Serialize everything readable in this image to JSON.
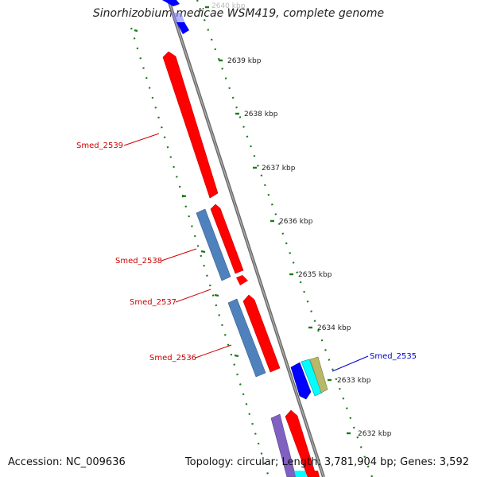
{
  "title": "Sinorhizobium medicae WSM419, complete genome",
  "accession": "Accession: NC_009636",
  "summary": "Topology: circular; Length: 3,781,904 bp; Genes: 3,592",
  "colors": {
    "forward_cds": "#ff0000",
    "reverse_cds": "#4f81bd",
    "blue_gene": "#0000ff",
    "cyan_gene": "#00ffff",
    "olive_gene": "#b8b86a",
    "purple_gene": "#8060c0",
    "tick_green": "#1a7a1a",
    "backbone": "#888888",
    "label_red": "#cc0000",
    "label_blue": "#0000cc"
  },
  "scale_ticks": [
    "2640 kbp",
    "2639 kbp",
    "2638 kbp",
    "2637 kbp",
    "2636 kbp",
    "2635 kbp",
    "2634 kbp",
    "2633 kbp",
    "2632 kbp"
  ],
  "gene_labels": [
    {
      "name": "Smed_2539",
      "color": "red"
    },
    {
      "name": "Smed_2538",
      "color": "red"
    },
    {
      "name": "Smed_2537",
      "color": "red"
    },
    {
      "name": "Smed_2536",
      "color": "red"
    },
    {
      "name": "Smed_2535",
      "color": "blue"
    }
  ]
}
